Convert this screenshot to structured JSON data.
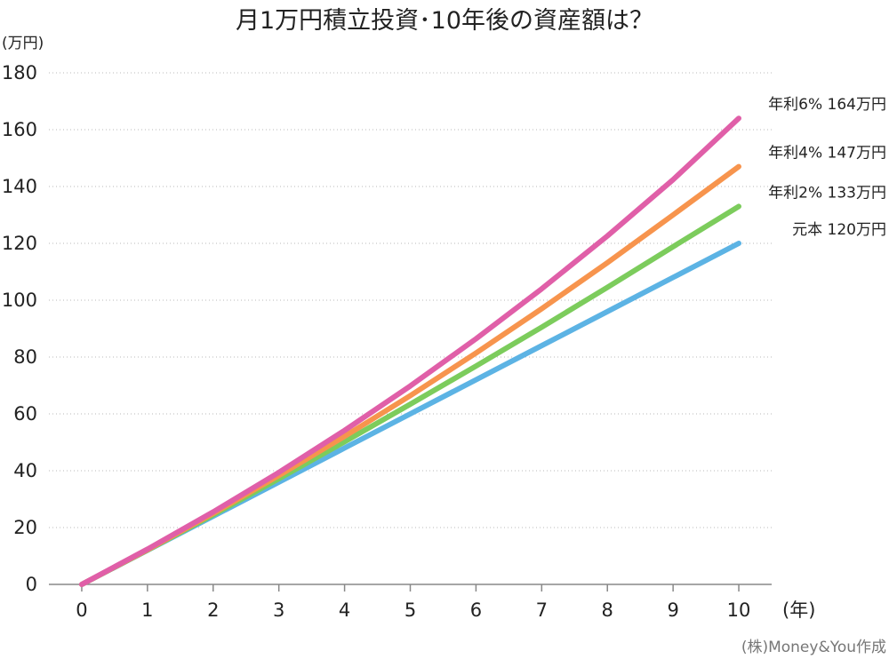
{
  "chart_data": {
    "type": "line",
    "title": "月1万円積立投資･10年後の資産額は？",
    "ylabel": "(万円)",
    "xlabel": "(年)",
    "x": [
      0,
      1,
      2,
      3,
      4,
      5,
      6,
      7,
      8,
      9,
      10
    ],
    "xlim": [
      -0.5,
      10.5
    ],
    "ylim": [
      0,
      180
    ],
    "yticks": [
      0,
      20,
      40,
      60,
      80,
      100,
      120,
      140,
      160,
      180
    ],
    "grid": true,
    "series": [
      {
        "name": "年利6%",
        "end_label": "年利6% 164万円",
        "color": "#e05fa8",
        "values": [
          0,
          12.4,
          25.5,
          39.4,
          54.2,
          69.8,
          86.4,
          104.0,
          122.6,
          142.4,
          164
        ]
      },
      {
        "name": "年利4%",
        "end_label": "年利4% 147万円",
        "color": "#f7944d",
        "values": [
          0,
          12.2,
          25.0,
          38.3,
          52.1,
          66.4,
          81.4,
          97.0,
          113.2,
          130.0,
          147
        ]
      },
      {
        "name": "年利2%",
        "end_label": "年利2% 133万円",
        "color": "#7ccc5c",
        "values": [
          0,
          12.1,
          24.5,
          37.2,
          50.2,
          63.4,
          76.8,
          90.5,
          104.5,
          118.8,
          133
        ]
      },
      {
        "name": "元本",
        "end_label": "元本 120万円",
        "color": "#5cb3e4",
        "values": [
          0,
          12,
          24,
          36,
          48,
          60,
          72,
          84,
          96,
          108,
          120
        ]
      }
    ]
  },
  "credit": "(株)Money&You作成"
}
